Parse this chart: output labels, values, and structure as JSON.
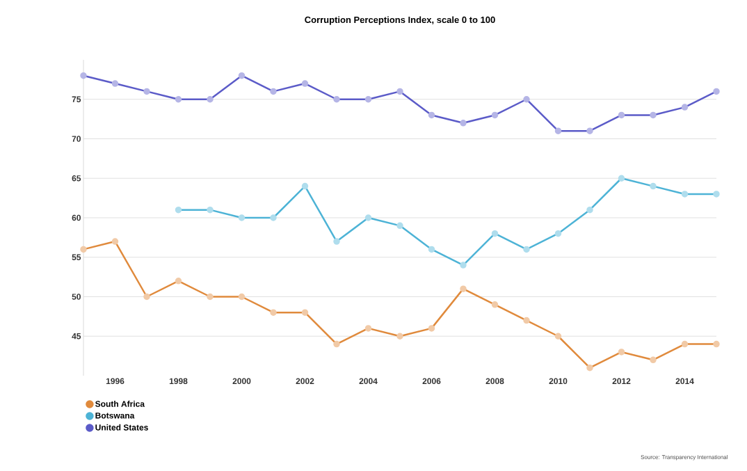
{
  "chart_data": {
    "type": "line",
    "title": "Corruption Perceptions Index, scale 0 to 100",
    "x": [
      1995,
      1996,
      1997,
      1998,
      1999,
      2000,
      2001,
      2002,
      2003,
      2004,
      2005,
      2006,
      2007,
      2008,
      2009,
      2010,
      2011,
      2012,
      2013,
      2014,
      2015
    ],
    "series": [
      {
        "name": "South Africa",
        "color": "#e08a3c",
        "values": [
          56,
          57,
          50,
          52,
          50,
          50,
          48,
          48,
          44,
          46,
          45,
          46,
          51,
          49,
          47,
          45,
          41,
          43,
          42,
          44,
          44
        ]
      },
      {
        "name": "Botswana",
        "color": "#4db3d6",
        "values": [
          null,
          null,
          null,
          61,
          61,
          60,
          60,
          64,
          57,
          60,
          59,
          56,
          54,
          58,
          56,
          58,
          61,
          65,
          64,
          63,
          63
        ]
      },
      {
        "name": "United States",
        "color": "#5b5bc8",
        "values": [
          78,
          77,
          76,
          75,
          75,
          78,
          76,
          77,
          75,
          75,
          76,
          73,
          72,
          73,
          75,
          71,
          71,
          73,
          73,
          74,
          76
        ]
      }
    ],
    "xlim": [
      1995,
      2015
    ],
    "xticks": [
      1996,
      1998,
      2000,
      2002,
      2004,
      2006,
      2008,
      2010,
      2012,
      2014
    ],
    "ylim": [
      40,
      80
    ],
    "yticks": [
      45,
      50,
      55,
      60,
      65,
      70,
      75
    ],
    "grid": "y",
    "legend": "bottom left",
    "marker": "circle",
    "line_style": "solid",
    "annotations": [
      "Source: Transparency International"
    ]
  }
}
